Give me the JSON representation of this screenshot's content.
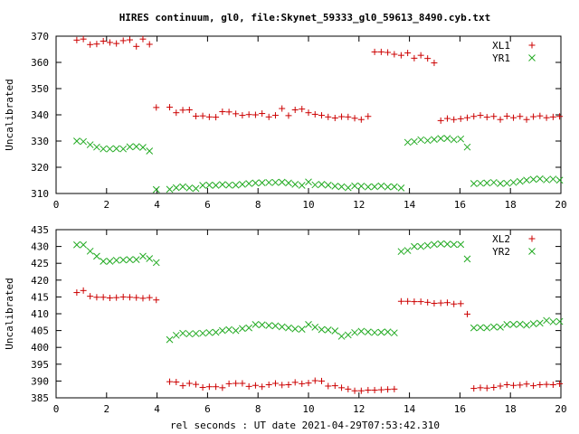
{
  "title": "HIRES continuum, gl0, file:Skynet_59333_gl0_59613_8490.cyb.txt",
  "xlabel": "rel seconds : UT date 2021-04-29T07:53:42.310",
  "colors": {
    "plus": "#cc0000",
    "cross": "#22aa22",
    "axis": "#000000"
  },
  "chart_data": [
    {
      "type": "scatter",
      "ylabel": "Uncalibrated",
      "xlim": [
        0,
        20
      ],
      "ylim": [
        310,
        370
      ],
      "xticks": [
        0,
        2,
        4,
        6,
        8,
        10,
        12,
        14,
        16,
        18,
        20
      ],
      "yticks": [
        310,
        320,
        330,
        340,
        350,
        360,
        370
      ],
      "legend_position": "top-right",
      "series": [
        {
          "name": "XL1",
          "marker": "plus",
          "x": [
            0.82,
            1.08,
            1.35,
            1.61,
            1.87,
            2.13,
            2.39,
            2.66,
            2.92,
            3.18,
            3.44,
            3.7,
            3.97,
            4.5,
            4.76,
            5.02,
            5.28,
            5.54,
            5.81,
            6.07,
            6.33,
            6.59,
            6.85,
            7.12,
            7.38,
            7.64,
            7.9,
            8.16,
            8.43,
            8.69,
            8.95,
            9.21,
            9.47,
            9.74,
            10.0,
            10.26,
            10.52,
            10.78,
            11.05,
            11.31,
            11.57,
            11.83,
            12.09,
            12.36,
            12.62,
            12.88,
            13.14,
            13.4,
            13.67,
            13.93,
            14.19,
            14.45,
            14.72,
            14.98,
            15.24,
            15.5,
            15.76,
            16.03,
            16.29,
            16.55,
            16.81,
            17.07,
            17.34,
            17.6,
            17.86,
            18.12,
            18.38,
            18.64,
            18.91,
            19.17,
            19.43,
            19.69,
            19.95
          ],
          "y": [
            368.5,
            368.9,
            366.8,
            367.0,
            368.1,
            367.6,
            367.2,
            368.3,
            368.6,
            366.1,
            368.9,
            366.9,
            342.8,
            342.9,
            340.8,
            341.8,
            341.9,
            339.5,
            339.6,
            339.2,
            339.1,
            341.2,
            341.1,
            340.4,
            339.8,
            340.1,
            340.0,
            340.5,
            339.2,
            339.8,
            342.4,
            339.7,
            341.9,
            342.2,
            340.8,
            340.2,
            339.8,
            339.2,
            338.8,
            339.3,
            339.2,
            338.7,
            338.2,
            339.4,
            364.0,
            364.0,
            363.8,
            363.1,
            362.7,
            363.6,
            361.6,
            362.7,
            361.5,
            359.8,
            337.8,
            338.6,
            338.2,
            338.5,
            338.9,
            339.4,
            339.8,
            339.1,
            339.4,
            338.2,
            339.5,
            338.9,
            339.4,
            338.2,
            339.3,
            339.6,
            338.9,
            339.2,
            339.4
          ]
        },
        {
          "name": "YR1",
          "marker": "cross",
          "x": [
            0.82,
            1.08,
            1.35,
            1.61,
            1.87,
            2.13,
            2.39,
            2.66,
            2.92,
            3.18,
            3.44,
            3.7,
            3.97,
            4.5,
            4.76,
            5.02,
            5.28,
            5.54,
            5.81,
            6.07,
            6.33,
            6.59,
            6.85,
            7.12,
            7.38,
            7.64,
            7.9,
            8.16,
            8.43,
            8.69,
            8.95,
            9.21,
            9.47,
            9.74,
            10.0,
            10.26,
            10.52,
            10.78,
            11.05,
            11.31,
            11.57,
            11.83,
            12.09,
            12.36,
            12.62,
            12.88,
            13.14,
            13.4,
            13.67,
            13.93,
            14.19,
            14.45,
            14.72,
            14.98,
            15.24,
            15.5,
            15.76,
            16.03,
            16.29,
            16.55,
            16.81,
            17.07,
            17.34,
            17.6,
            17.86,
            18.12,
            18.38,
            18.64,
            18.91,
            19.17,
            19.43,
            19.69,
            19.95
          ],
          "y": [
            330.0,
            329.8,
            328.6,
            327.7,
            327.0,
            327.0,
            327.1,
            327.0,
            327.8,
            327.9,
            327.6,
            326.2,
            311.5,
            311.6,
            312.2,
            312.6,
            312.1,
            311.9,
            313.1,
            313.2,
            313.1,
            313.4,
            313.2,
            313.2,
            313.5,
            313.8,
            314.0,
            314.1,
            314.2,
            314.2,
            314.3,
            314.0,
            313.5,
            313.1,
            314.4,
            313.3,
            313.5,
            313.2,
            312.8,
            312.6,
            312.2,
            312.9,
            312.8,
            312.5,
            312.6,
            312.9,
            312.5,
            312.6,
            312.1,
            329.5,
            329.8,
            330.5,
            330.2,
            330.6,
            331.0,
            331.0,
            330.5,
            330.8,
            327.7,
            313.8,
            313.9,
            314.0,
            314.2,
            313.8,
            313.9,
            314.2,
            314.6,
            315.1,
            315.4,
            315.6,
            315.2,
            315.5,
            315.1
          ]
        }
      ]
    },
    {
      "type": "scatter",
      "ylabel": "Uncalibrated",
      "xlim": [
        0,
        20
      ],
      "ylim": [
        385,
        435
      ],
      "xticks": [
        0,
        2,
        4,
        6,
        8,
        10,
        12,
        14,
        16,
        18,
        20
      ],
      "yticks": [
        385,
        390,
        395,
        400,
        405,
        410,
        415,
        420,
        425,
        430,
        435
      ],
      "legend_position": "top-right",
      "series": [
        {
          "name": "XL2",
          "marker": "plus",
          "x": [
            0.82,
            1.08,
            1.35,
            1.61,
            1.87,
            2.13,
            2.39,
            2.66,
            2.92,
            3.18,
            3.44,
            3.7,
            3.97,
            4.5,
            4.76,
            5.02,
            5.28,
            5.54,
            5.81,
            6.07,
            6.33,
            6.59,
            6.85,
            7.12,
            7.38,
            7.64,
            7.9,
            8.16,
            8.43,
            8.69,
            8.95,
            9.21,
            9.47,
            9.74,
            10.0,
            10.26,
            10.52,
            10.78,
            11.05,
            11.31,
            11.57,
            11.83,
            12.09,
            12.36,
            12.62,
            12.88,
            13.14,
            13.4,
            13.67,
            13.93,
            14.19,
            14.45,
            14.72,
            14.98,
            15.24,
            15.5,
            15.76,
            16.03,
            16.29,
            16.55,
            16.81,
            17.07,
            17.34,
            17.6,
            17.86,
            18.12,
            18.38,
            18.64,
            18.91,
            19.17,
            19.43,
            19.69,
            19.95
          ],
          "y": [
            416.3,
            416.9,
            415.2,
            414.9,
            414.9,
            414.7,
            414.8,
            415.0,
            414.9,
            414.8,
            414.6,
            414.8,
            414.1,
            389.8,
            389.7,
            388.6,
            389.3,
            389.0,
            388.1,
            388.3,
            388.3,
            388.0,
            389.2,
            389.3,
            389.3,
            388.4,
            388.7,
            388.3,
            388.9,
            389.3,
            388.8,
            388.9,
            389.6,
            389.2,
            389.4,
            390.1,
            390.0,
            388.5,
            388.6,
            388.0,
            387.6,
            387.1,
            387.1,
            387.3,
            387.3,
            387.4,
            387.5,
            387.6,
            413.7,
            413.7,
            413.6,
            413.6,
            413.4,
            413.1,
            413.2,
            413.3,
            412.9,
            413.0,
            409.9,
            387.8,
            388.0,
            387.9,
            388.1,
            388.5,
            388.9,
            388.7,
            388.8,
            389.1,
            388.6,
            388.9,
            389.0,
            388.9,
            389.2
          ]
        },
        {
          "name": "YR2",
          "marker": "cross",
          "x": [
            0.82,
            1.08,
            1.35,
            1.61,
            1.87,
            2.13,
            2.39,
            2.66,
            2.92,
            3.18,
            3.44,
            3.7,
            3.97,
            4.5,
            4.76,
            5.02,
            5.28,
            5.54,
            5.81,
            6.07,
            6.33,
            6.59,
            6.85,
            7.12,
            7.38,
            7.64,
            7.9,
            8.16,
            8.43,
            8.69,
            8.95,
            9.21,
            9.47,
            9.74,
            10.0,
            10.26,
            10.52,
            10.78,
            11.05,
            11.31,
            11.57,
            11.83,
            12.09,
            12.36,
            12.62,
            12.88,
            13.14,
            13.4,
            13.67,
            13.93,
            14.19,
            14.45,
            14.72,
            14.98,
            15.24,
            15.5,
            15.76,
            16.03,
            16.29,
            16.55,
            16.81,
            17.07,
            17.34,
            17.6,
            17.86,
            18.12,
            18.38,
            18.64,
            18.91,
            19.17,
            19.43,
            19.69,
            19.95
          ],
          "y": [
            430.5,
            430.5,
            428.6,
            427.1,
            425.6,
            425.6,
            425.9,
            426.0,
            426.1,
            426.1,
            427.1,
            426.4,
            425.2,
            402.3,
            403.6,
            404.2,
            404.0,
            404.1,
            404.2,
            404.4,
            404.5,
            405.0,
            405.3,
            405.0,
            405.6,
            405.8,
            406.8,
            406.7,
            406.5,
            406.4,
            406.1,
            405.8,
            405.5,
            405.4,
            406.8,
            406.0,
            405.3,
            405.2,
            404.9,
            403.3,
            403.7,
            404.4,
            404.8,
            404.6,
            404.4,
            404.5,
            404.6,
            404.3,
            428.5,
            428.8,
            430.0,
            430.0,
            430.3,
            430.6,
            430.8,
            430.7,
            430.6,
            430.6,
            426.3,
            405.8,
            405.9,
            405.8,
            406.1,
            406.0,
            406.8,
            406.8,
            406.9,
            406.6,
            407.0,
            407.2,
            408.0,
            407.6,
            407.7
          ]
        }
      ]
    }
  ]
}
